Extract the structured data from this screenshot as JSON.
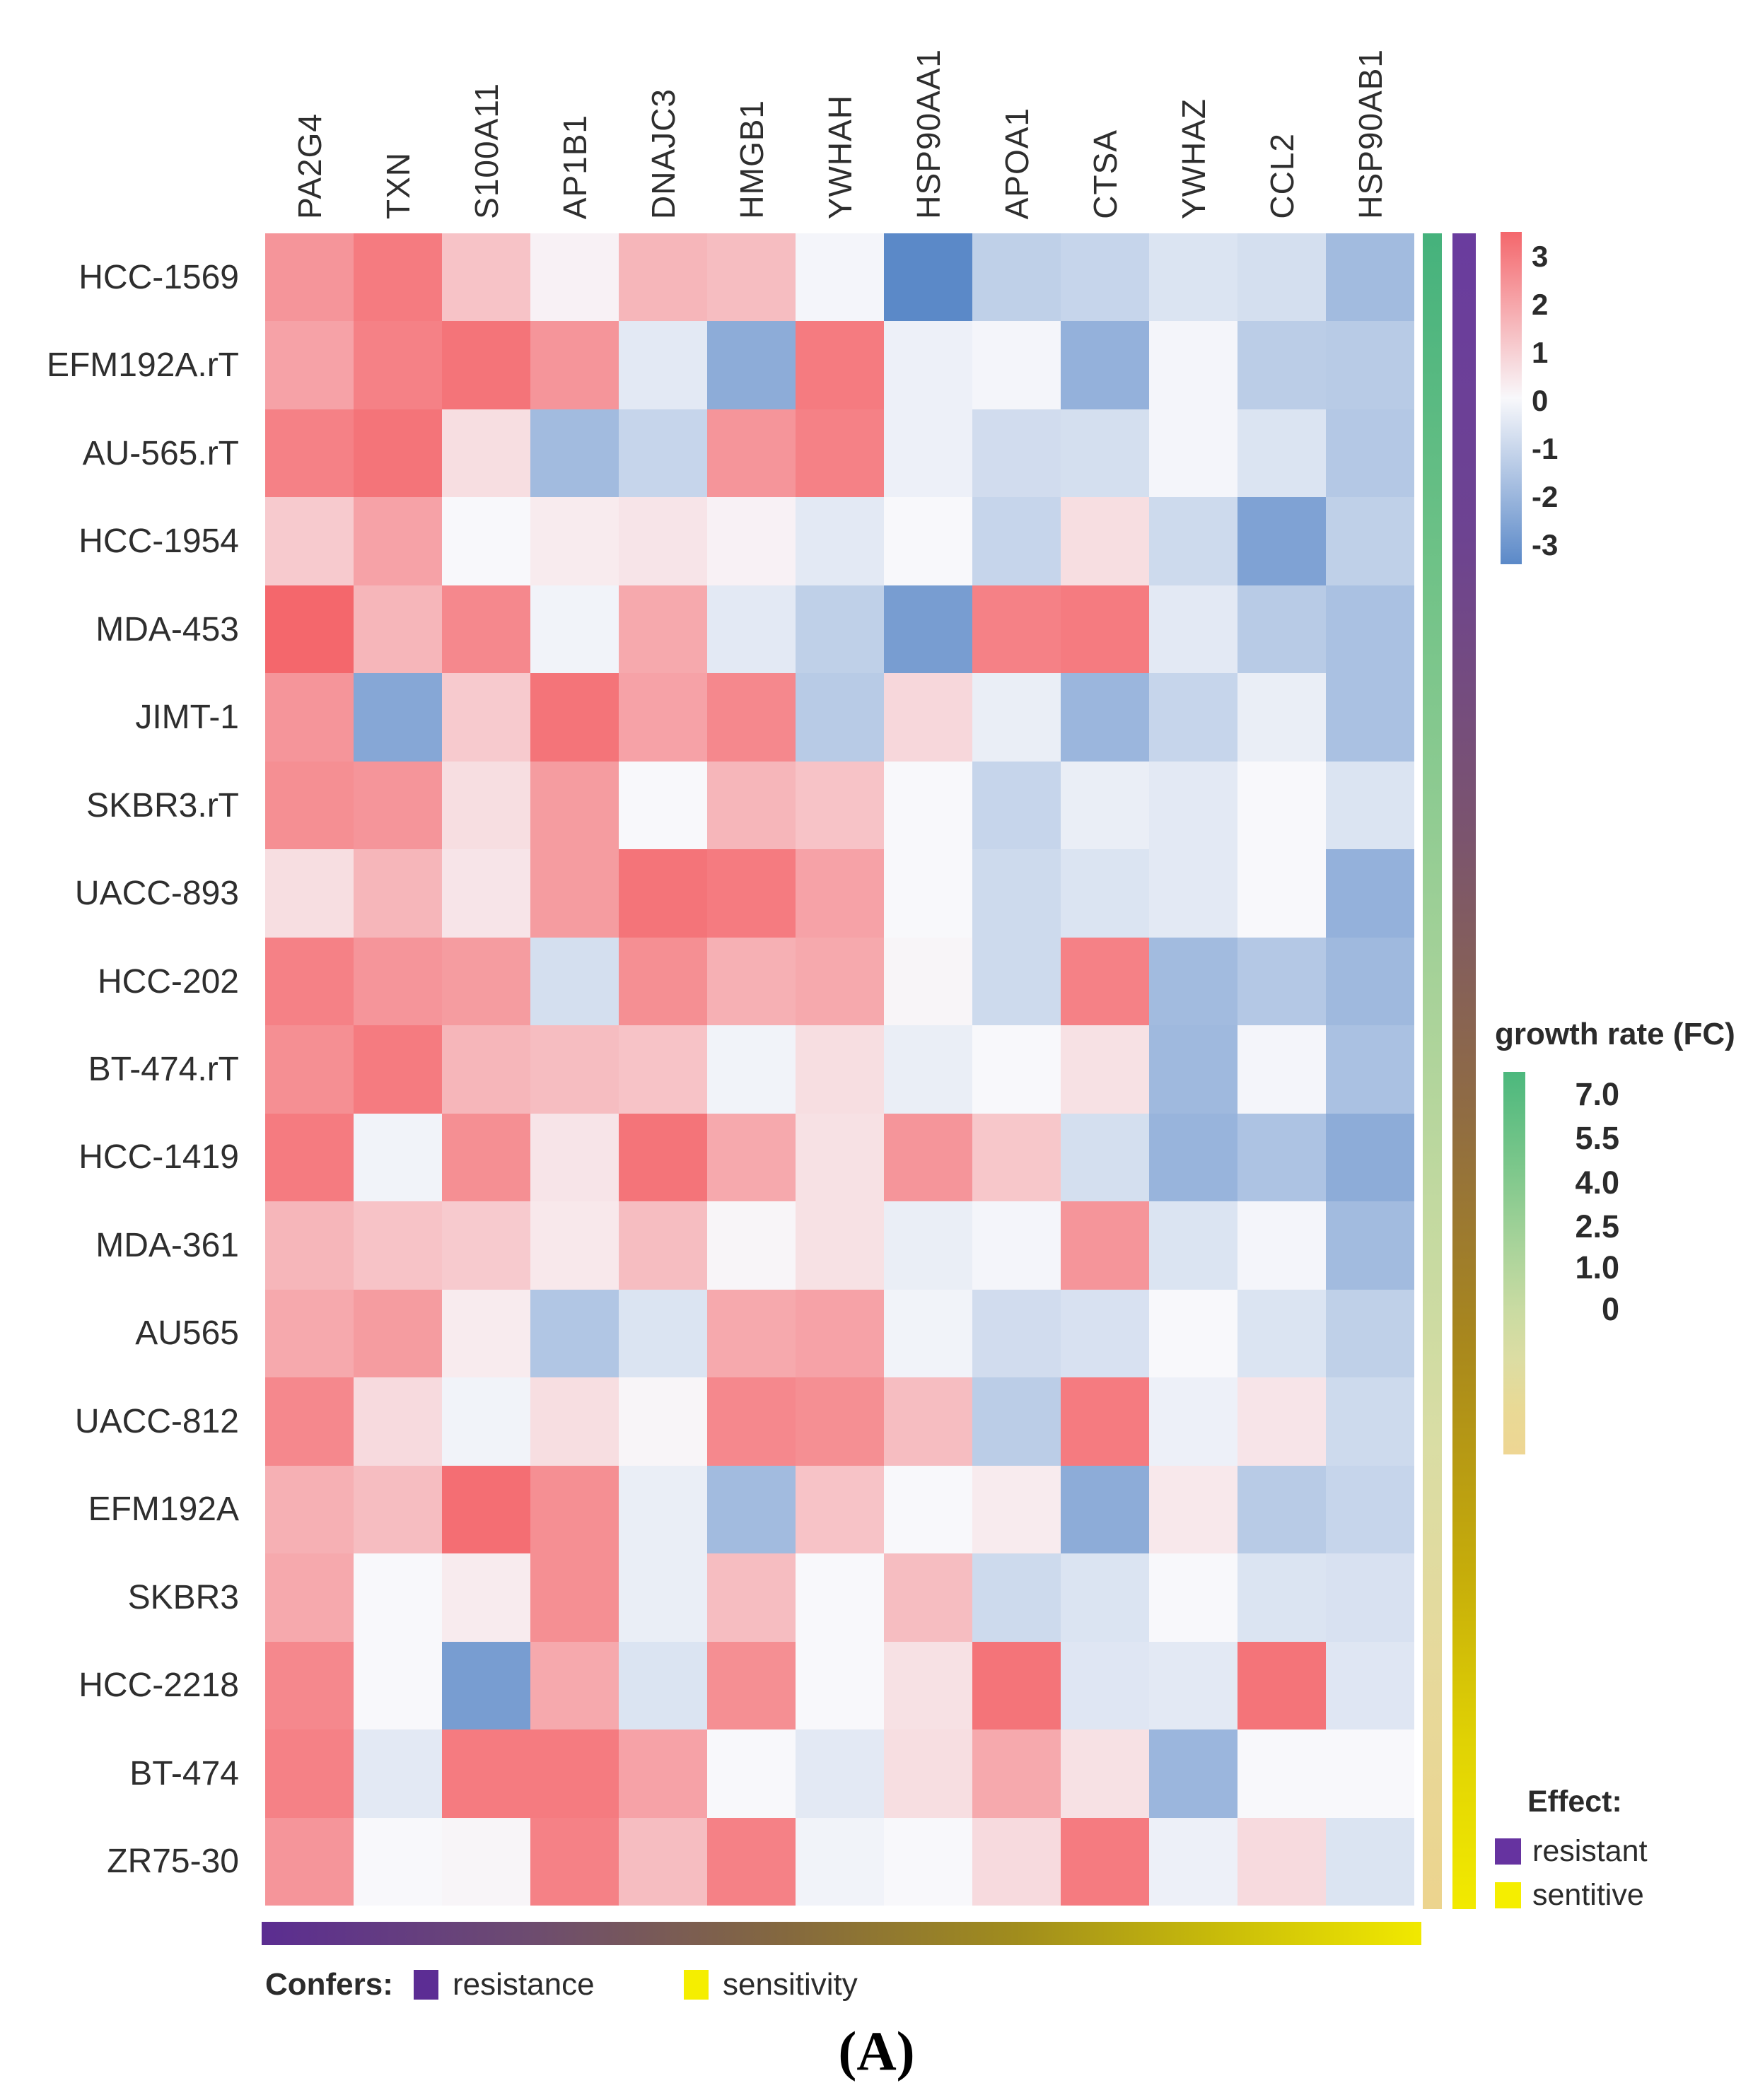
{
  "figure": {
    "caption": "(A)"
  },
  "chart_data": {
    "type": "heatmap",
    "columns": [
      "PA2G4",
      "TXN",
      "S100A11",
      "AP1B1",
      "DNAJC3",
      "HMGB1",
      "YWHAH",
      "HSP90AA1",
      "APOA1",
      "CTSA",
      "YWHAZ",
      "CCL2",
      "HSP90AB1"
    ],
    "rows": [
      "HCC-1569",
      "EFM192A.rT",
      "AU-565.rT",
      "HCC-1954",
      "MDA-453",
      "JIMT-1",
      "SKBR3.rT",
      "UACC-893",
      "HCC-202",
      "BT-474.rT",
      "HCC-1419",
      "MDA-361",
      "AU565",
      "UACC-812",
      "EFM192A",
      "SKBR3",
      "HCC-2218",
      "BT-474",
      "ZR75-30"
    ],
    "values": [
      [
        1.5,
        1.9,
        0.8,
        0.1,
        1.0,
        0.9,
        -0.05,
        -2.2,
        -0.8,
        -0.7,
        -0.4,
        -0.5,
        -1.2
      ],
      [
        1.3,
        1.8,
        2.0,
        1.5,
        -0.3,
        -1.5,
        1.9,
        -0.15,
        -0.05,
        -1.4,
        -0.05,
        -0.85,
        -0.9
      ],
      [
        1.8,
        2.0,
        0.4,
        -1.2,
        -0.7,
        1.5,
        1.8,
        -0.15,
        -0.55,
        -0.5,
        -0.05,
        -0.4,
        -0.95
      ],
      [
        0.7,
        1.3,
        0.0,
        0.2,
        0.3,
        0.1,
        -0.3,
        0.0,
        -0.7,
        0.4,
        -0.6,
        -1.7,
        -0.8
      ],
      [
        2.2,
        1.0,
        1.7,
        -0.1,
        1.2,
        -0.3,
        -0.8,
        -1.8,
        1.8,
        1.9,
        -0.3,
        -0.9,
        -1.1
      ],
      [
        1.5,
        -1.6,
        0.7,
        2.0,
        1.3,
        1.7,
        -0.9,
        0.5,
        -0.2,
        -1.3,
        -0.7,
        -0.2,
        -1.1
      ],
      [
        1.6,
        1.5,
        0.4,
        1.4,
        0.0,
        1.0,
        0.8,
        0.0,
        -0.7,
        -0.2,
        -0.3,
        0.0,
        -0.4
      ],
      [
        0.4,
        1.0,
        0.3,
        1.4,
        2.0,
        1.9,
        1.3,
        0.0,
        -0.6,
        -0.4,
        -0.3,
        0.0,
        -1.4
      ],
      [
        1.8,
        1.5,
        1.4,
        -0.5,
        1.6,
        1.1,
        1.2,
        0.05,
        -0.6,
        1.8,
        -1.2,
        -0.95,
        -1.25
      ],
      [
        1.6,
        1.9,
        1.0,
        0.9,
        0.8,
        -0.1,
        0.4,
        -0.2,
        0.0,
        0.35,
        -1.25,
        -0.05,
        -1.1
      ],
      [
        1.9,
        -0.1,
        1.6,
        0.3,
        2.0,
        1.2,
        0.35,
        1.5,
        0.75,
        -0.5,
        -1.35,
        -1.05,
        -1.5
      ],
      [
        1.0,
        0.8,
        0.7,
        0.25,
        0.9,
        0.05,
        0.35,
        -0.2,
        -0.05,
        1.5,
        -0.4,
        -0.05,
        -1.2
      ],
      [
        1.2,
        1.4,
        0.2,
        -1.0,
        -0.4,
        1.2,
        1.3,
        -0.1,
        -0.55,
        -0.45,
        0.0,
        -0.4,
        -0.8
      ],
      [
        1.7,
        0.45,
        -0.1,
        0.4,
        0.05,
        1.7,
        1.6,
        0.9,
        -0.85,
        1.9,
        -0.15,
        0.3,
        -0.6
      ],
      [
        1.1,
        0.9,
        2.1,
        1.6,
        -0.2,
        -1.2,
        0.8,
        0.0,
        0.2,
        -1.5,
        0.25,
        -0.9,
        -0.7
      ],
      [
        1.2,
        0.0,
        0.2,
        1.6,
        -0.2,
        0.9,
        0.0,
        0.9,
        -0.6,
        -0.4,
        0.0,
        -0.4,
        -0.45
      ],
      [
        1.7,
        0.0,
        -1.8,
        1.2,
        -0.4,
        1.6,
        0.0,
        0.35,
        2.0,
        -0.35,
        -0.3,
        2.0,
        -0.35
      ],
      [
        1.8,
        -0.3,
        1.9,
        1.9,
        1.3,
        0.0,
        -0.3,
        0.4,
        1.2,
        0.35,
        -1.3,
        0.0,
        0.0
      ],
      [
        1.5,
        0.0,
        0.05,
        1.8,
        0.9,
        1.8,
        -0.1,
        0.0,
        0.45,
        1.9,
        -0.15,
        0.45,
        -0.4
      ]
    ],
    "colorbar": {
      "ticks": [
        "3",
        "2",
        "1",
        "0",
        "-1",
        "-2",
        "-3"
      ],
      "domain": [
        -3,
        3
      ],
      "max_color": "#f4676c",
      "mid_color": "#f8f8fb",
      "min_color": "#5b89c8",
      "saturation_value": 2.2
    },
    "row_annotation_bars": {
      "growth_rate_bar_stops": [
        {
          "color": "#45b27c",
          "pos": 0
        },
        {
          "color": "#6fc287",
          "pos": 20
        },
        {
          "color": "#9ccf96",
          "pos": 40
        },
        {
          "color": "#c2d9a0",
          "pos": 58
        },
        {
          "color": "#d9dda4",
          "pos": 72
        },
        {
          "color": "#e6d99c",
          "pos": 85
        },
        {
          "color": "#ecd48e",
          "pos": 100
        }
      ],
      "effect_bar_stops": [
        {
          "color": "#6a3c9e",
          "pos": 0
        },
        {
          "color": "#6d4391",
          "pos": 18
        },
        {
          "color": "#7b546e",
          "pos": 36
        },
        {
          "color": "#8f6b44",
          "pos": 52
        },
        {
          "color": "#a8871d",
          "pos": 66
        },
        {
          "color": "#c6ad0a",
          "pos": 80
        },
        {
          "color": "#e0d204",
          "pos": 90
        },
        {
          "color": "#f2ea00",
          "pos": 100
        }
      ]
    },
    "column_annotation_bar": {
      "confers_bar_stops": [
        {
          "color": "#5b2d91",
          "pos": 0
        },
        {
          "color": "#6c4a72",
          "pos": 22
        },
        {
          "color": "#84683f",
          "pos": 45
        },
        {
          "color": "#a08c1d",
          "pos": 65
        },
        {
          "color": "#c7ba0a",
          "pos": 82
        },
        {
          "color": "#f1e900",
          "pos": 100
        }
      ]
    },
    "growth_legend": {
      "title": "growth rate (FC)",
      "ticks": [
        "7.0",
        "5.5",
        "4.0",
        "2.5",
        "1.0",
        "0"
      ],
      "bar_stops": [
        {
          "color": "#4cb87d",
          "pos": 0
        },
        {
          "color": "#7cc78b",
          "pos": 25
        },
        {
          "color": "#a7d39a",
          "pos": 45
        },
        {
          "color": "#c9dba2",
          "pos": 62
        },
        {
          "color": "#dcdda3",
          "pos": 75
        },
        {
          "color": "#e9d995",
          "pos": 88
        },
        {
          "color": "#eed694",
          "pos": 100
        }
      ]
    },
    "effect_legend": {
      "title": "Effect:",
      "items": [
        {
          "label": "resistant",
          "color": "#6633a0"
        },
        {
          "label": "sentitive",
          "color": "#f5ee00"
        }
      ]
    },
    "confers_legend": {
      "title": "Confers:",
      "items": [
        {
          "label": "resistance",
          "color": "#5c2d94"
        },
        {
          "label": "sensitivity",
          "color": "#f5ee00"
        }
      ]
    }
  }
}
